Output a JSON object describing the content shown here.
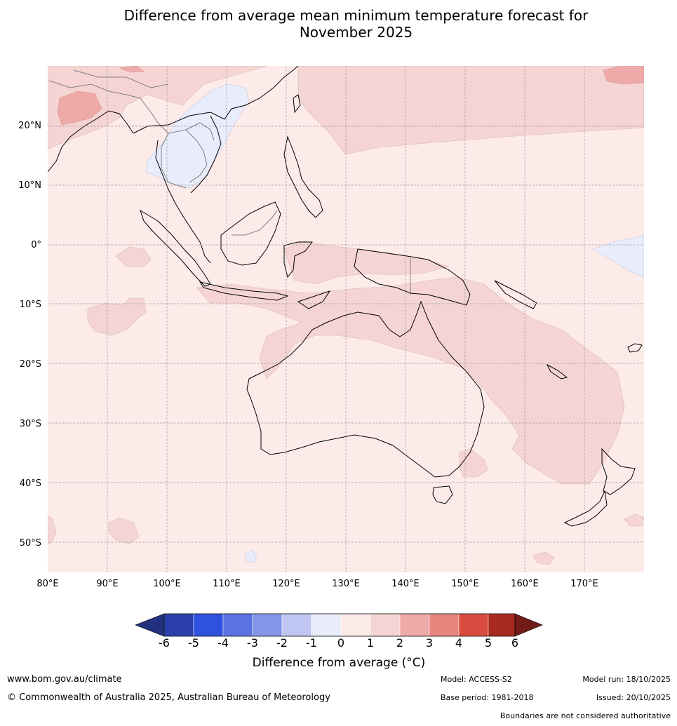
{
  "title": {
    "line1": "Difference from average mean minimum temperature forecast for",
    "line2": "November 2025"
  },
  "map": {
    "lat_labels": [
      "20°N",
      "10°N",
      "0°",
      "10°S",
      "20°S",
      "30°S",
      "40°S",
      "50°S"
    ],
    "lon_labels": [
      "80°E",
      "90°E",
      "100°E",
      "110°E",
      "120°E",
      "130°E",
      "140°E",
      "150°E",
      "160°E",
      "170°E"
    ],
    "colors": {
      "ocean_base": "#fcebe9",
      "anomaly_1_2": "#f5d5d3",
      "anomaly_2_3": "#eeaaa8",
      "anomaly_neg_0_1": "#e9ecfb",
      "coast": "#000000",
      "border": "#808080",
      "grid": "#8a8a8a"
    }
  },
  "colorbar": {
    "ticks": [
      "-6",
      "-5",
      "-4",
      "-3",
      "-2",
      "-1",
      "0",
      "1",
      "2",
      "3",
      "4",
      "5",
      "6"
    ],
    "colors": [
      "#22307f",
      "#2a3fab",
      "#3050e0",
      "#5a72e2",
      "#8495ea",
      "#bfc6f4",
      "#e9ecfb",
      "#fcebe9",
      "#f5d5d3",
      "#eeaaa8",
      "#e8857e",
      "#da4c40",
      "#a8291f",
      "#731b16"
    ],
    "label": "Difference from average (°C)"
  },
  "footer": {
    "website": "www.bom.gov.au/climate",
    "copyright": "© Commonwealth of Australia 2025, Australian Bureau of Meteorology",
    "model": "Model: ACCESS-S2",
    "base_period": "Base period: 1981-2018",
    "model_run": "Model run: 18/10/2025",
    "issued": "Issued: 20/10/2025",
    "disclaimer": "Boundaries are not considered authoritative"
  }
}
